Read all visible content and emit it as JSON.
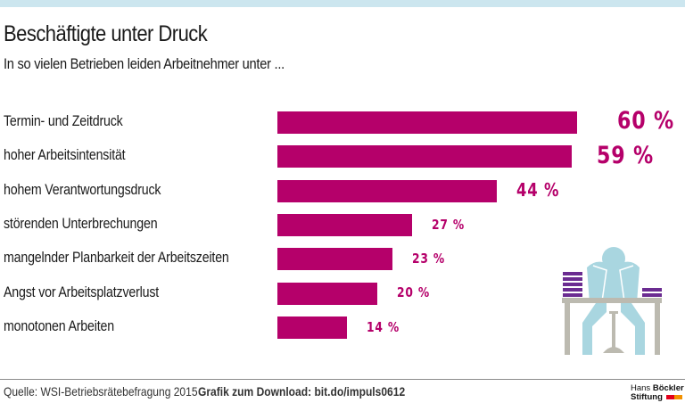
{
  "header": {
    "title": "Beschäftigte unter Druck",
    "subtitle": "In so vielen Betrieben leiden Arbeitnehmer unter ..."
  },
  "colors": {
    "bar": "#b5006a",
    "value_text": "#b5006a",
    "top_band": "#cce6ef",
    "figure": "#a9d6e0",
    "desk": "#bcbab0",
    "papers": "#6b2c91",
    "logo_red": "#e3001b",
    "logo_orange": "#f29100"
  },
  "chart_data": {
    "type": "bar",
    "orientation": "horizontal",
    "title": "Beschäftigte unter Druck",
    "subtitle": "In so vielen Betrieben leiden Arbeitnehmer unter ...",
    "categories": [
      "Termin- und Zeitdruck",
      "hoher Arbeitsintensität",
      "hohem Verantwortungsdruck",
      "störenden Unterbrechungen",
      "mangelnder Planbarkeit der Arbeitszeiten",
      "Angst vor Arbeitsplatzverlust",
      "monotonen Arbeiten"
    ],
    "values": [
      60,
      59,
      44,
      27,
      23,
      20,
      14
    ],
    "value_labels": [
      "60 %",
      "59 %",
      "44 %",
      "27 %",
      "23 %",
      "20 %",
      "14 %"
    ],
    "unit": "%",
    "xlabel": "",
    "ylabel": "",
    "xlim": [
      0,
      60
    ],
    "grid": false,
    "legend": "none"
  },
  "footer": {
    "source": "Quelle: WSI-Betriebsrätebefragung 2015",
    "download": "Grafik zum Download: bit.do/impuls0612"
  },
  "logo": {
    "line1_light": "Hans ",
    "line1_bold": "Böckler",
    "line2": "Stiftung"
  },
  "illustration": {
    "icon": "stressed-worker-at-desk-icon"
  }
}
